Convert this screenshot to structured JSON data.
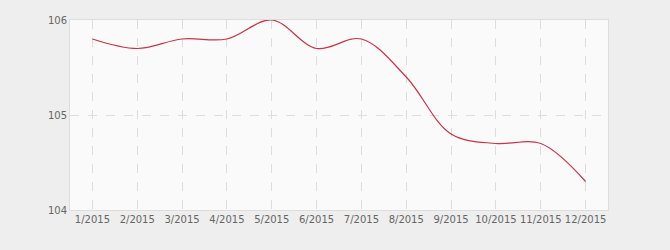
{
  "chart_data": {
    "type": "line",
    "categories": [
      "1/2015",
      "2/2015",
      "3/2015",
      "4/2015",
      "5/2015",
      "6/2015",
      "7/2015",
      "8/2015",
      "9/2015",
      "10/2015",
      "11/2015",
      "12/2015"
    ],
    "values": [
      105.8,
      105.7,
      105.8,
      105.8,
      106.0,
      105.7,
      105.8,
      105.4,
      104.8,
      104.7,
      104.7,
      104.3
    ],
    "color": "#cc3344",
    "ylim": [
      104,
      106
    ],
    "yticks": [
      104,
      105,
      106
    ],
    "grid": true,
    "line_style": "smooth"
  }
}
